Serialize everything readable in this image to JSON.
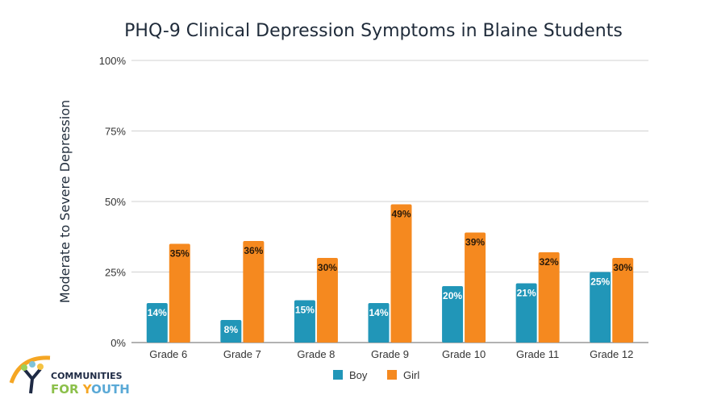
{
  "chart_data": {
    "type": "bar",
    "title": "PHQ-9 Clinical Depression Symptoms in Blaine Students",
    "xlabel": "",
    "ylabel": "Moderate to Severe Depression",
    "ylim": [
      0,
      100
    ],
    "yticks": [
      "0%",
      "25%",
      "50%",
      "75%",
      "100%"
    ],
    "ytick_values": [
      0,
      25,
      50,
      75,
      100
    ],
    "grid": true,
    "legend_position": "bottom",
    "categories": [
      "Grade 6",
      "Grade 7",
      "Grade 8",
      "Grade 9",
      "Grade 10",
      "Grade 11",
      "Grade 12"
    ],
    "series": [
      {
        "name": "Boy",
        "color": "#2196b8",
        "values": [
          14,
          8,
          15,
          14,
          20,
          21,
          25
        ],
        "labels": [
          "14%",
          "8%",
          "15%",
          "14%",
          "20%",
          "21%",
          "25%"
        ]
      },
      {
        "name": "Girl",
        "color": "#f5891f",
        "values": [
          35,
          36,
          30,
          49,
          39,
          32,
          30
        ],
        "labels": [
          "35%",
          "36%",
          "30%",
          "49%",
          "39%",
          "32%",
          "30%"
        ]
      }
    ]
  },
  "logo": {
    "line1": "COMMUNITIES",
    "line2": "FOR YOUTH"
  }
}
